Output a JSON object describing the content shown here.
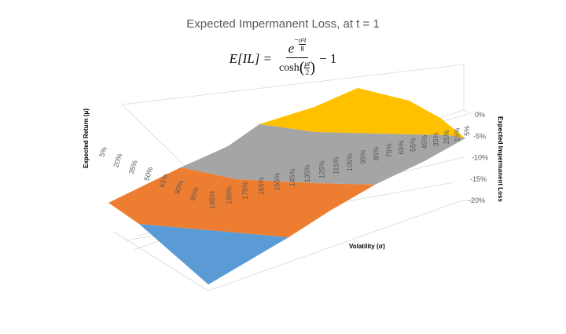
{
  "chart_data": {
    "type": "surface",
    "title": "Expected Impermanent Loss, at t = 1",
    "formula": {
      "lhs": "E[IL] =",
      "num_base": "e",
      "num_exp_sign": "−",
      "num_exp_num": "σ²t",
      "num_exp_den": "8",
      "den_func": "cosh",
      "den_num": "μt",
      "den_den": "2",
      "tail": "− 1"
    },
    "xlabel": "Volatility (σ)",
    "ylabel": "Expected Return (μ)",
    "zlabel": "Expected Impermanent Loss",
    "x_ticks": [
      "195%",
      "185%",
      "175%",
      "165%",
      "155%",
      "145%",
      "135%",
      "125%",
      "115%",
      "105%",
      "95%",
      "85%",
      "75%",
      "65%",
      "55%",
      "45%",
      "35%",
      "25%",
      "15%",
      "5%"
    ],
    "y_ticks": [
      "5%",
      "20%",
      "35%",
      "50%",
      "65%",
      "80%",
      "95%"
    ],
    "z_ticks": [
      "0%",
      "-5%",
      "-10%",
      "-15%",
      "-20%"
    ],
    "z_range": [
      -0.2,
      0
    ],
    "bands": [
      {
        "range": "0% to -5%",
        "color": "#FFC000"
      },
      {
        "range": "-5% to -10%",
        "color": "#A5A5A5"
      },
      {
        "range": "-10% to -15%",
        "color": "#ED7D31"
      },
      {
        "range": "-15% to -20%",
        "color": "#5B9BD5"
      }
    ],
    "grid": true,
    "legend": "none"
  }
}
